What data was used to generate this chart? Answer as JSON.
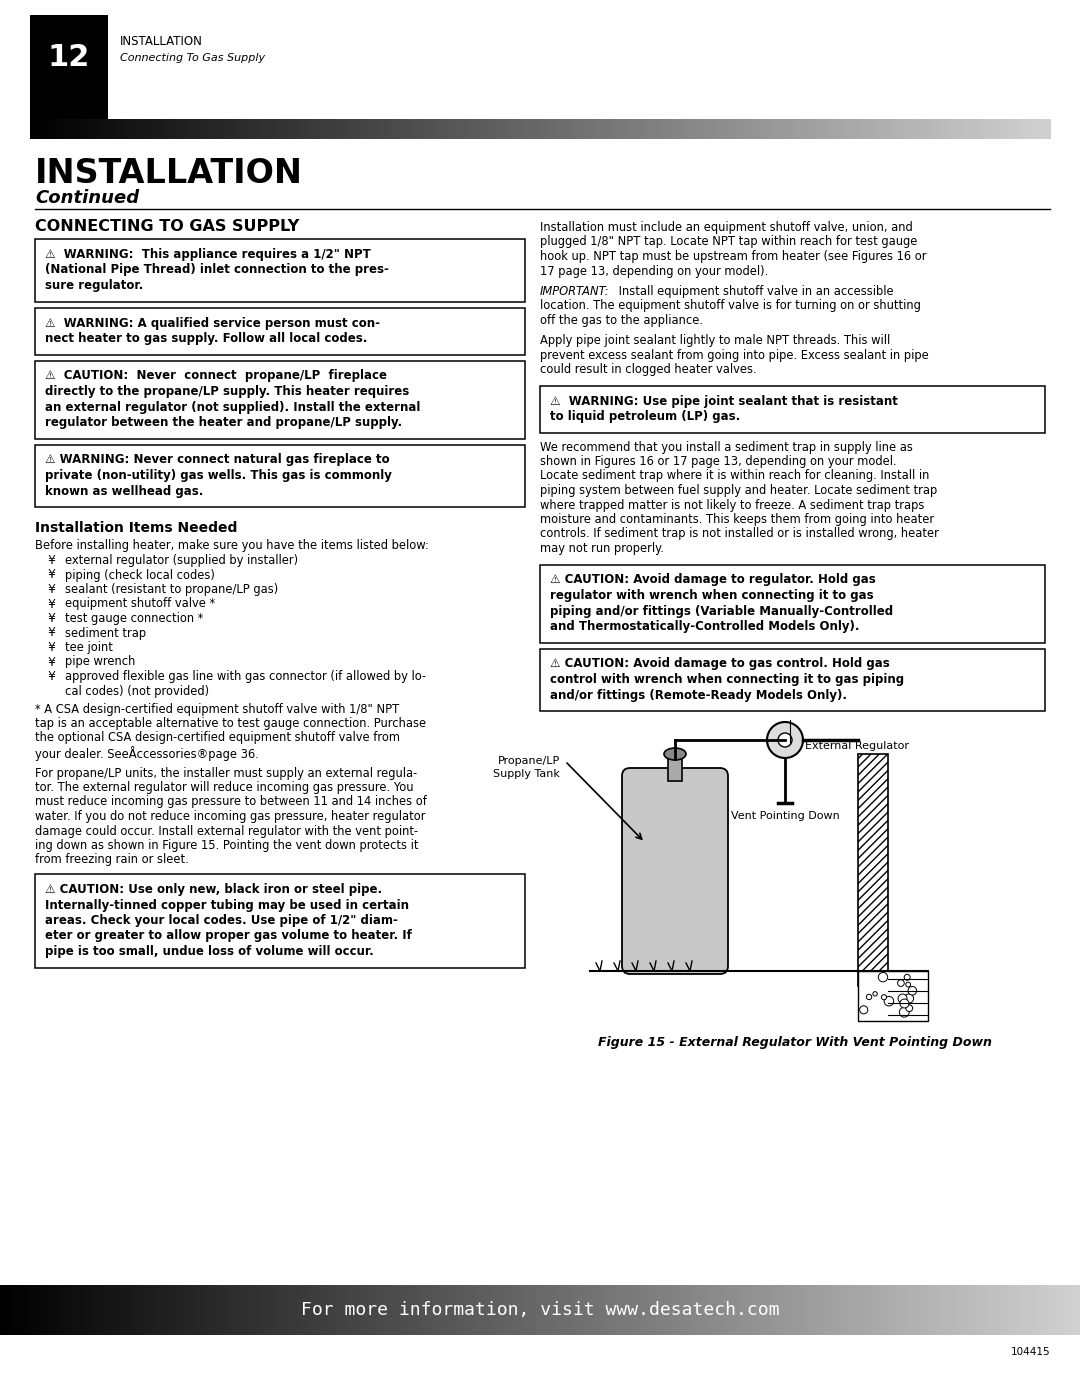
{
  "page_num": "12",
  "header_title": "INSTALLATION",
  "header_subtitle": "Connecting To Gas Supply",
  "section_title": "INSTALLATION",
  "section_subtitle": "Continued",
  "subsection": "CONNECTING TO GAS SUPPLY",
  "install_items_title": "Installation Items Needed",
  "install_items": [
    "external regulator (supplied by installer)",
    "piping (check local codes)",
    "sealant (resistant to propane/LP gas)",
    "equipment shutoff valve *",
    "test gauge connection *",
    "sediment trap",
    "tee joint",
    "pipe wrench",
    "approved flexible gas line with gas connector (if allowed by lo-"
  ],
  "install_items_last": "cal codes) (not provided)",
  "figure_label1": "External Regulator",
  "figure_label2": "Propane/LP\nSupply Tank",
  "figure_label3": "Vent Pointing Down",
  "figure_caption": "Figure 15 - External Regulator With Vent Pointing Down",
  "footer_text": "For more information, visit www.desatech.com",
  "footer_page_code": "104415",
  "bg_color": "#ffffff"
}
